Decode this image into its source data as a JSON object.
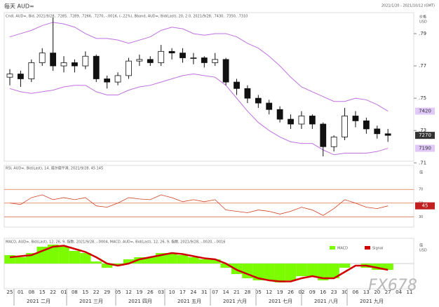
{
  "watermark": "FX678",
  "chart_data": [
    {
      "type": "candlestick",
      "title": "每天 AUD=",
      "date_range": "2021/1/20 - 2021/10/12 (GMT)",
      "legend": "Cndl, AUD=, Bid, 2021/9/28, .7285, .7289, .7266, .7270, -.0016, (-.22%), Bband, AUD=, Bid(Last), 20, 2.0, 2021/9/28, .7430, .7350, .7310",
      "y_label": [
        "价格",
        "USD"
      ],
      "categories": [
        "25",
        "01",
        "08",
        "15",
        "22",
        "01",
        "08",
        "15",
        "22",
        "29",
        "05",
        "12",
        "19",
        "26",
        "03",
        "10",
        "17",
        "24",
        "31",
        "07",
        "14",
        "21",
        "28",
        "05",
        "12",
        "19",
        "26",
        "02",
        "09",
        "16",
        "23",
        "30",
        "06",
        "13",
        "20",
        "27",
        "04",
        "11"
      ],
      "months": [
        "2021 二月",
        "2021 三月",
        "2021 四月",
        "2021 五月",
        "2021 六月",
        "2021 七月",
        "2021 八月",
        "2021 九月"
      ],
      "up_color": "#ffffff",
      "down_color": "#111111",
      "open": [
        0.763,
        0.765,
        0.762,
        0.772,
        0.778,
        0.77,
        0.772,
        0.77,
        0.776,
        0.762,
        0.76,
        0.764,
        0.773,
        0.774,
        0.772,
        0.779,
        0.778,
        0.775,
        0.775,
        0.772,
        0.774,
        0.76,
        0.756,
        0.75,
        0.747,
        0.743,
        0.737,
        0.734,
        0.739,
        0.734,
        0.72,
        0.726,
        0.739,
        0.736,
        0.731,
        0.728,
        null,
        null
      ],
      "high": [
        0.768,
        0.767,
        0.774,
        0.781,
        0.8,
        0.776,
        0.774,
        0.779,
        0.777,
        0.764,
        0.766,
        0.775,
        0.777,
        0.776,
        0.783,
        0.781,
        0.781,
        0.778,
        0.776,
        0.778,
        0.775,
        0.762,
        0.758,
        0.752,
        0.749,
        0.745,
        0.74,
        0.742,
        0.74,
        0.735,
        0.727,
        0.744,
        0.742,
        0.738,
        0.733,
        0.731,
        null,
        null
      ],
      "low": [
        0.758,
        0.757,
        0.76,
        0.77,
        0.767,
        0.766,
        0.766,
        0.768,
        0.76,
        0.756,
        0.758,
        0.762,
        0.77,
        0.77,
        0.77,
        0.774,
        0.772,
        0.771,
        0.769,
        0.77,
        0.758,
        0.752,
        0.747,
        0.744,
        0.74,
        0.735,
        0.731,
        0.731,
        0.731,
        0.714,
        0.717,
        0.724,
        0.732,
        0.728,
        0.725,
        0.723,
        null,
        null
      ],
      "close": [
        0.765,
        0.762,
        0.772,
        0.778,
        0.77,
        0.772,
        0.77,
        0.776,
        0.762,
        0.76,
        0.764,
        0.773,
        0.774,
        0.772,
        0.779,
        0.778,
        0.775,
        0.775,
        0.772,
        0.774,
        0.76,
        0.756,
        0.75,
        0.747,
        0.743,
        0.737,
        0.734,
        0.739,
        0.734,
        0.72,
        0.726,
        0.739,
        0.736,
        0.731,
        0.728,
        0.727,
        null,
        null
      ],
      "bands": {
        "color": "#c070e0",
        "upper": [
          0.788,
          0.79,
          0.792,
          0.795,
          0.797,
          0.796,
          0.794,
          0.79,
          0.787,
          0.787,
          0.786,
          0.784,
          0.786,
          0.788,
          0.792,
          0.794,
          0.793,
          0.79,
          0.789,
          0.79,
          0.79,
          0.788,
          0.784,
          0.781,
          0.776,
          0.77,
          0.763,
          0.757,
          0.754,
          0.751,
          0.748,
          0.748,
          0.75,
          0.749,
          0.746,
          0.742,
          null,
          null
        ],
        "lower": [
          0.756,
          0.754,
          0.753,
          0.754,
          0.755,
          0.757,
          0.758,
          0.758,
          0.754,
          0.752,
          0.752,
          0.755,
          0.757,
          0.758,
          0.76,
          0.762,
          0.764,
          0.765,
          0.764,
          0.763,
          0.758,
          0.75,
          0.742,
          0.735,
          0.73,
          0.726,
          0.723,
          0.722,
          0.722,
          0.718,
          0.715,
          0.716,
          0.716,
          0.716,
          0.717,
          0.719,
          null,
          null
        ]
      },
      "last_labels": {
        "upper": "7420",
        "close": "7270",
        "lower": "7190"
      },
      "ylim": [
        0.711,
        0.803
      ],
      "yticks": [
        {
          "value": 0.71,
          "label": ".71"
        },
        {
          "value": 0.73,
          "label": ".73"
        },
        {
          "value": 0.75,
          "label": ".75"
        },
        {
          "value": 0.77,
          "label": ".77"
        },
        {
          "value": 0.79,
          "label": ".79"
        }
      ]
    },
    {
      "type": "line",
      "legend": "RSI, AUD=, Bid(Last), 14, 威尔德平滑, 2021/9/28, 45.145",
      "color": "#d04020",
      "y_label": [
        "值"
      ],
      "last_label": "45",
      "values": [
        50,
        48,
        58,
        62,
        55,
        58,
        55,
        58,
        46,
        44,
        50,
        58,
        56,
        55,
        62,
        58,
        52,
        55,
        52,
        55,
        40,
        38,
        36,
        40,
        38,
        34,
        38,
        44,
        40,
        32,
        42,
        55,
        50,
        44,
        42,
        46,
        null,
        null
      ],
      "ylim": [
        15,
        105
      ],
      "yticks": [
        30,
        50,
        70
      ],
      "level_color": "#e07050"
    },
    {
      "type": "macd",
      "legend": "MACD, AUD=, Bid(Last), 12, 26, 9, 指数, 2021/9/28, -.0004, MACD, AUD=, Bid(Last), 12, 26, 9, 指数, 2021/9/28, -.0020, -.0016",
      "y_label": [
        "值",
        "USD"
      ],
      "series": [
        {
          "name": "MACD",
          "color": "#7cfc00",
          "values": [
            0.004,
            0.003,
            0.005,
            0.008,
            0.009,
            0.008,
            0.006,
            0.005,
            0.001,
            -0.002,
            -0.001,
            0.002,
            0.003,
            0.003,
            0.005,
            0.005,
            0.004,
            0.003,
            0.002,
            0.002,
            -0.002,
            -0.005,
            -0.007,
            -0.008,
            -0.008,
            -0.009,
            -0.008,
            -0.006,
            -0.006,
            -0.008,
            -0.007,
            -0.002,
            0.0,
            -0.002,
            -0.003,
            -0.003,
            null,
            null
          ]
        },
        {
          "name": "Signal",
          "color": "#d00000",
          "values": [
            0.003,
            0.0035,
            0.004,
            0.006,
            0.008,
            0.0085,
            0.007,
            0.0055,
            0.003,
            0.0,
            -0.001,
            0.0,
            0.002,
            0.003,
            0.004,
            0.005,
            0.0045,
            0.0035,
            0.0025,
            0.002,
            0.0,
            -0.003,
            -0.005,
            -0.007,
            -0.008,
            -0.0085,
            -0.0085,
            -0.007,
            -0.006,
            -0.007,
            -0.007,
            -0.004,
            -0.001,
            -0.001,
            -0.002,
            -0.003,
            null,
            null
          ]
        }
      ],
      "ylim": [
        -0.012,
        0.012
      ]
    }
  ]
}
